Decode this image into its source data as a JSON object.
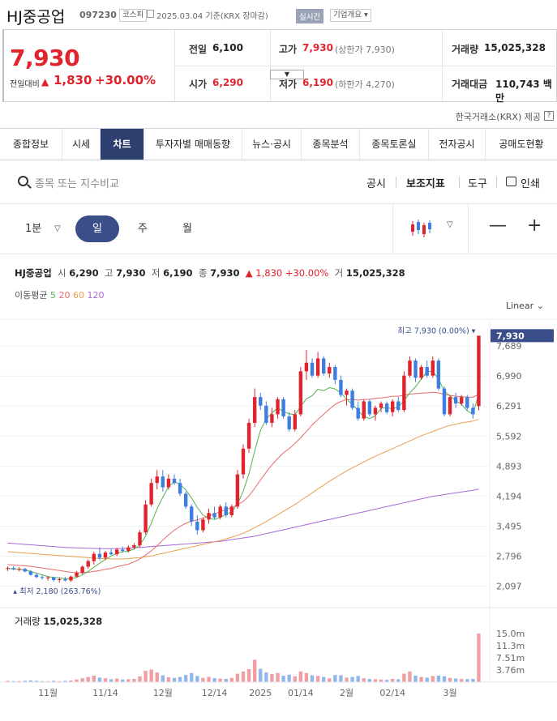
{
  "header": {
    "stock_name": "HJ중공업",
    "stock_code": "097230",
    "market_tag": "코스피",
    "date_text": "2025.03.04 기준(KRX 장마감)",
    "live_label": "실시간",
    "corp_info_label": "기업개요"
  },
  "quote": {
    "price": "7,930",
    "change_label": "전일대비",
    "change_arrow": "▲",
    "change_value": "1,830",
    "change_pct": "+30.00%",
    "prev_label": "전일",
    "prev_value": "6,100",
    "high_label": "고가",
    "high_value": "7,930",
    "upper_limit": "(상한가 7,930)",
    "volume_label": "거래량",
    "volume_value": "15,025,328",
    "open_label": "시가",
    "open_value": "6,290",
    "low_label": "저가",
    "low_value": "6,190",
    "lower_limit": "(하한가 4,270)",
    "amount_label": "거래대금",
    "amount_value": "110,743 백만"
  },
  "provider": "한국거래소(KRX) 제공",
  "tabs": [
    "종합정보",
    "시세",
    "차트",
    "투자자별 매매동향",
    "뉴스·공시",
    "종목분석",
    "종목토론실",
    "전자공시",
    "공매도현황"
  ],
  "toolbar": {
    "search_placeholder": "종목 또는 지수비교",
    "disclosure": "공시",
    "indicator": "보조지표",
    "tools": "도구",
    "print": "인쇄"
  },
  "period": {
    "minute": "1분",
    "day": "일",
    "week": "주",
    "month": "월"
  },
  "chart_info": {
    "name": "HJ중공업",
    "open_lbl": "시",
    "open": "6,290",
    "high_lbl": "고",
    "high": "7,930",
    "low_lbl": "저",
    "low": "6,190",
    "close_lbl": "종",
    "close": "7,930",
    "change": "▲ 1,830 +30.00%",
    "vol_lbl": "거",
    "vol": "15,025,328"
  },
  "ma_legend": {
    "label": "이동평균",
    "periods": [
      "5",
      "20",
      "60",
      "120"
    ]
  },
  "scale_label": "Linear",
  "colors": {
    "up": "#e0232d",
    "down": "#3d7ee0",
    "ma5": "#52b352",
    "ma20": "#e86b6b",
    "ma60": "#e8a050",
    "ma120": "#a868d8",
    "accent": "#2d3f6e"
  },
  "chart_data": {
    "type": "candlestick",
    "y_ticks": [
      7689,
      6990,
      6291,
      5592,
      4893,
      4194,
      3495,
      2796,
      2097
    ],
    "y_tick_labels": [
      "7,689",
      "6,990",
      "6,291",
      "5,592",
      "4,893",
      "4,194",
      "3,495",
      "2,796",
      "2,097"
    ],
    "ylim": [
      1900,
      8050
    ],
    "last_price_label": "7,930",
    "max_annotation": "최고 7,930 (0.00%)",
    "min_annotation": "최저 2,180 (263.76%)",
    "x_labels": [
      "11월",
      "11/14",
      "12월",
      "12/14",
      "2025",
      "01/14",
      "2월",
      "02/14",
      "3월"
    ],
    "x_label_index": [
      7,
      17,
      27,
      36,
      44,
      51,
      59,
      67,
      77
    ],
    "candles": [
      [
        2500,
        2560,
        2450,
        2520
      ],
      [
        2520,
        2560,
        2470,
        2490
      ],
      [
        2490,
        2540,
        2440,
        2500
      ],
      [
        2500,
        2520,
        2420,
        2440
      ],
      [
        2440,
        2470,
        2340,
        2360
      ],
      [
        2360,
        2400,
        2280,
        2310
      ],
      [
        2310,
        2350,
        2250,
        2290
      ],
      [
        2290,
        2330,
        2230,
        2300
      ],
      [
        2300,
        2320,
        2200,
        2240
      ],
      [
        2240,
        2290,
        2180,
        2260
      ],
      [
        2260,
        2310,
        2210,
        2230
      ],
      [
        2230,
        2340,
        2200,
        2320
      ],
      [
        2320,
        2450,
        2300,
        2410
      ],
      [
        2410,
        2580,
        2380,
        2550
      ],
      [
        2550,
        2720,
        2500,
        2680
      ],
      [
        2680,
        2900,
        2600,
        2850
      ],
      [
        2850,
        3000,
        2700,
        2760
      ],
      [
        2760,
        2920,
        2700,
        2880
      ],
      [
        2880,
        2960,
        2820,
        2840
      ],
      [
        2840,
        2990,
        2800,
        2950
      ],
      [
        2950,
        3020,
        2880,
        2920
      ],
      [
        2920,
        3050,
        2880,
        3000
      ],
      [
        3000,
        3100,
        2950,
        3050
      ],
      [
        3050,
        3400,
        3000,
        3350
      ],
      [
        3350,
        4100,
        3300,
        4000
      ],
      [
        4000,
        4600,
        3950,
        4500
      ],
      [
        4500,
        4800,
        4350,
        4650
      ],
      [
        4650,
        4800,
        4300,
        4400
      ],
      [
        4400,
        4700,
        4350,
        4600
      ],
      [
        4600,
        4700,
        4450,
        4500
      ],
      [
        4500,
        4600,
        4200,
        4250
      ],
      [
        4250,
        4300,
        3900,
        3950
      ],
      [
        3950,
        4000,
        3500,
        3600
      ],
      [
        3600,
        3750,
        3300,
        3400
      ],
      [
        3400,
        3700,
        3350,
        3650
      ],
      [
        3650,
        3900,
        3550,
        3800
      ],
      [
        3800,
        3950,
        3650,
        3700
      ],
      [
        3700,
        4000,
        3650,
        3950
      ],
      [
        3950,
        4050,
        3700,
        3750
      ],
      [
        3750,
        4000,
        3700,
        3950
      ],
      [
        3950,
        4800,
        3900,
        4700
      ],
      [
        4700,
        5400,
        4600,
        5300
      ],
      [
        5300,
        6000,
        5200,
        5900
      ],
      [
        5900,
        6700,
        5800,
        6500
      ],
      [
        6500,
        6600,
        6200,
        6300
      ],
      [
        6300,
        6400,
        5850,
        5900
      ],
      [
        5900,
        6250,
        5800,
        6100
      ],
      [
        6100,
        6500,
        6000,
        6450
      ],
      [
        6450,
        6500,
        6000,
        6050
      ],
      [
        6050,
        6150,
        5700,
        5750
      ],
      [
        5750,
        6200,
        5700,
        6100
      ],
      [
        6100,
        7200,
        6050,
        7100
      ],
      [
        7100,
        7600,
        6900,
        7300
      ],
      [
        7300,
        7400,
        6950,
        7000
      ],
      [
        7000,
        7550,
        6950,
        7400
      ],
      [
        7400,
        7450,
        7000,
        7050
      ],
      [
        7050,
        7300,
        6950,
        7200
      ],
      [
        7200,
        7250,
        6800,
        6900
      ],
      [
        6900,
        7000,
        6500,
        6550
      ],
      [
        6550,
        6700,
        6300,
        6650
      ],
      [
        6650,
        6700,
        6200,
        6250
      ],
      [
        6250,
        6400,
        5950,
        6000
      ],
      [
        6000,
        6450,
        5950,
        6400
      ],
      [
        6400,
        6450,
        6050,
        6100
      ],
      [
        6100,
        6300,
        5950,
        6250
      ],
      [
        6250,
        6400,
        6150,
        6350
      ],
      [
        6350,
        6400,
        6100,
        6150
      ],
      [
        6150,
        6450,
        6050,
        6400
      ],
      [
        6400,
        6500,
        6150,
        6200
      ],
      [
        6200,
        7100,
        6150,
        7000
      ],
      [
        7000,
        7450,
        6950,
        7350
      ],
      [
        7350,
        7400,
        6850,
        6950
      ],
      [
        6950,
        7250,
        6900,
        7200
      ],
      [
        7200,
        7350,
        6950,
        7000
      ],
      [
        7000,
        7450,
        6950,
        7350
      ],
      [
        7350,
        7400,
        6650,
        6700
      ],
      [
        6700,
        6750,
        6050,
        6100
      ],
      [
        6100,
        6550,
        6050,
        6500
      ],
      [
        6500,
        6600,
        6250,
        6350
      ],
      [
        6350,
        6550,
        6300,
        6500
      ],
      [
        6500,
        6550,
        6200,
        6250
      ],
      [
        6250,
        6350,
        6000,
        6100
      ],
      [
        6290,
        7930,
        6190,
        7930
      ]
    ],
    "ma5": [
      2510,
      2500,
      2490,
      2470,
      2440,
      2400,
      2360,
      2320,
      2300,
      2290,
      2270,
      2270,
      2300,
      2360,
      2440,
      2540,
      2630,
      2720,
      2800,
      2860,
      2900,
      2910,
      2960,
      3060,
      3260,
      3570,
      3900,
      4170,
      4410,
      4530,
      4470,
      4340,
      4150,
      3930,
      3750,
      3680,
      3650,
      3700,
      3770,
      3830,
      4010,
      4310,
      4720,
      5250,
      5730,
      5990,
      6130,
      6250,
      6160,
      6110,
      6090,
      6280,
      6460,
      6530,
      6680,
      6650,
      6720,
      6690,
      6600,
      6450,
      6330,
      6180,
      6050,
      6000,
      6060,
      6240,
      6250,
      6230,
      6270,
      6420,
      6600,
      6740,
      6920,
      7100,
      7100,
      6920,
      6640,
      6530,
      6420,
      6330,
      6180,
      6100,
      6590
    ],
    "ma20": [
      2600,
      2590,
      2580,
      2570,
      2560,
      2540,
      2520,
      2500,
      2480,
      2460,
      2440,
      2420,
      2410,
      2410,
      2420,
      2440,
      2460,
      2490,
      2510,
      2550,
      2580,
      2610,
      2660,
      2730,
      2820,
      2920,
      3040,
      3170,
      3290,
      3400,
      3490,
      3560,
      3610,
      3640,
      3680,
      3730,
      3780,
      3830,
      3880,
      3930,
      3990,
      4070,
      4200,
      4380,
      4570,
      4750,
      4920,
      5070,
      5200,
      5300,
      5420,
      5550,
      5700,
      5850,
      5980,
      6100,
      6220,
      6330,
      6400,
      6440,
      6440,
      6430,
      6440,
      6450,
      6470,
      6480,
      6500,
      6520,
      6520,
      6540,
      6570,
      6580,
      6590,
      6600,
      6610,
      6600,
      6560,
      6540,
      6520,
      6510,
      6500,
      6500,
      6560
    ],
    "ma60": [
      2900,
      2890,
      2880,
      2870,
      2860,
      2850,
      2840,
      2830,
      2820,
      2810,
      2800,
      2790,
      2780,
      2770,
      2760,
      2750,
      2740,
      2740,
      2730,
      2730,
      2730,
      2740,
      2750,
      2760,
      2780,
      2800,
      2830,
      2860,
      2890,
      2920,
      2950,
      2980,
      3010,
      3040,
      3070,
      3100,
      3130,
      3160,
      3200,
      3240,
      3280,
      3330,
      3390,
      3460,
      3530,
      3600,
      3680,
      3760,
      3840,
      3920,
      4000,
      4090,
      4180,
      4270,
      4360,
      4450,
      4540,
      4620,
      4700,
      4780,
      4850,
      4920,
      4990,
      5060,
      5120,
      5180,
      5240,
      5300,
      5360,
      5420,
      5480,
      5540,
      5600,
      5650,
      5700,
      5750,
      5800,
      5840,
      5870,
      5900,
      5920,
      5940,
      5980
    ],
    "ma120": [
      3100,
      3090,
      3080,
      3070,
      3060,
      3050,
      3040,
      3030,
      3020,
      3010,
      3000,
      2995,
      2990,
      2985,
      2980,
      2975,
      2970,
      2970,
      2970,
      2970,
      2975,
      2980,
      2990,
      3000,
      3010,
      3020,
      3030,
      3040,
      3050,
      3060,
      3070,
      3080,
      3090,
      3100,
      3110,
      3120,
      3130,
      3140,
      3160,
      3180,
      3200,
      3220,
      3240,
      3260,
      3290,
      3320,
      3350,
      3380,
      3410,
      3440,
      3470,
      3500,
      3530,
      3560,
      3590,
      3620,
      3650,
      3680,
      3710,
      3740,
      3770,
      3800,
      3830,
      3860,
      3890,
      3920,
      3950,
      3980,
      4010,
      4040,
      4070,
      4100,
      4130,
      4160,
      4190,
      4210,
      4230,
      4250,
      4270,
      4290,
      4310,
      4330,
      4360
    ],
    "volume": [
      0.4,
      0.3,
      0.3,
      0.4,
      0.5,
      0.4,
      0.3,
      0.3,
      0.4,
      0.3,
      0.4,
      0.5,
      0.8,
      1.2,
      1.6,
      2.0,
      1.4,
      1.2,
      0.9,
      1.1,
      0.8,
      0.9,
      1.0,
      1.8,
      3.5,
      3.9,
      3.0,
      2.1,
      1.5,
      1.3,
      1.6,
      2.2,
      2.8,
      1.9,
      1.3,
      1.6,
      1.2,
      1.1,
      1.0,
      1.3,
      2.6,
      3.3,
      4.0,
      6.9,
      4.1,
      3.0,
      2.5,
      2.8,
      2.0,
      2.3,
      1.8,
      3.3,
      2.8,
      2.1,
      1.9,
      1.6,
      1.2,
      2.2,
      2.1,
      1.4,
      1.6,
      1.9,
      1.2,
      1.0,
      0.9,
      0.8,
      0.7,
      1.0,
      0.9,
      2.6,
      3.3,
      2.0,
      1.6,
      1.4,
      1.9,
      2.0,
      1.8,
      1.3,
      1.1,
      1.0,
      0.9,
      1.0,
      15.0
    ],
    "volume_ticks": [
      "15.0m",
      "11.3m",
      "7.51m",
      "3.76m"
    ],
    "volume_tick_values": [
      15.0,
      11.3,
      7.51,
      3.76
    ],
    "volume_title": "거래량",
    "volume_value": "15,025,328"
  }
}
